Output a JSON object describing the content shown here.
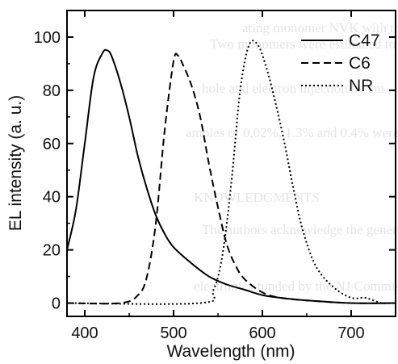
{
  "chart_data": {
    "type": "line",
    "title": "",
    "xlabel": "Wavelength (nm)",
    "ylabel": "EL intensity (a. u.)",
    "xlim": [
      380,
      750
    ],
    "ylim": [
      -5,
      110
    ],
    "xticks": [
      400,
      500,
      600,
      700
    ],
    "yticks": [
      0,
      20,
      40,
      60,
      80,
      100
    ],
    "grid": false,
    "legend_position": "top-right",
    "series": [
      {
        "name": "C47",
        "style": "solid",
        "x": [
          380,
          390,
          400,
          410,
          420,
          425,
          430,
          440,
          450,
          460,
          470,
          480,
          490,
          500,
          520,
          540,
          560,
          580,
          600,
          620,
          650,
          700,
          750
        ],
        "y": [
          20,
          35,
          60,
          85,
          94,
          95,
          93,
          83,
          70,
          55,
          43,
          33,
          26,
          21,
          15,
          10,
          7,
          5,
          3,
          2,
          1,
          0,
          0
        ]
      },
      {
        "name": "C6",
        "style": "dashed",
        "x": [
          380,
          440,
          460,
          470,
          480,
          490,
          500,
          505,
          510,
          520,
          530,
          540,
          550,
          560,
          570,
          580,
          600,
          620,
          650,
          700,
          750
        ],
        "y": [
          0,
          0,
          3,
          10,
          30,
          65,
          91,
          93,
          90,
          82,
          70,
          52,
          36,
          22,
          14,
          9,
          4,
          2,
          1,
          0,
          0
        ]
      },
      {
        "name": "NR",
        "style": "dotted",
        "x": [
          380,
          530,
          545,
          555,
          565,
          575,
          585,
          595,
          605,
          615,
          625,
          635,
          645,
          660,
          680,
          700,
          715,
          725,
          735,
          750
        ],
        "y": [
          0,
          0,
          5,
          18,
          45,
          80,
          97,
          97,
          88,
          75,
          60,
          43,
          28,
          14,
          6,
          2,
          2,
          1,
          0,
          0
        ]
      }
    ]
  }
}
